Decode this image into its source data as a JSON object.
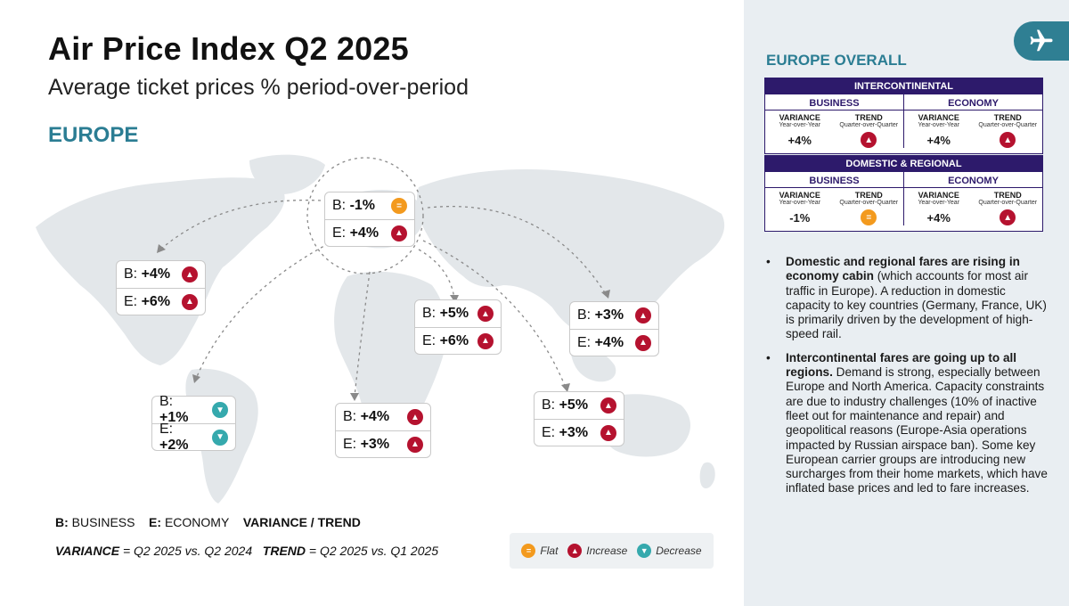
{
  "header": {
    "title": "Air Price Index Q2 2025",
    "subtitle": "Average ticket prices % period-over-period",
    "region": "EUROPE"
  },
  "map_cards": {
    "europe": {
      "b_prefix": "B:",
      "b_value": "-1%",
      "b_trend": "flat",
      "e_prefix": "E:",
      "e_value": "+4%",
      "e_trend": "increase"
    },
    "north_america": {
      "b_prefix": "B:",
      "b_value": "+4%",
      "b_trend": "increase",
      "e_prefix": "E:",
      "e_value": "+6%",
      "e_trend": "increase"
    },
    "south_america": {
      "b_prefix": "B:",
      "b_value": "+1%",
      "b_trend": "decrease",
      "e_prefix": "E:",
      "e_value": "+2%",
      "e_trend": "decrease"
    },
    "africa": {
      "b_prefix": "B:",
      "b_value": "+4%",
      "b_trend": "increase",
      "e_prefix": "E:",
      "e_value": "+3%",
      "e_trend": "increase"
    },
    "middle_east": {
      "b_prefix": "B:",
      "b_value": "+5%",
      "b_trend": "increase",
      "e_prefix": "E:",
      "e_value": "+6%",
      "e_trend": "increase"
    },
    "asia": {
      "b_prefix": "B:",
      "b_value": "+3%",
      "b_trend": "increase",
      "e_prefix": "E:",
      "e_value": "+4%",
      "e_trend": "increase"
    },
    "oceania": {
      "b_prefix": "B:",
      "b_value": "+5%",
      "b_trend": "increase",
      "e_prefix": "E:",
      "e_value": "+3%",
      "e_trend": "increase"
    }
  },
  "legend": {
    "b_key": "B:",
    "b_text": "BUSINESS",
    "e_key": "E:",
    "e_text": "ECONOMY",
    "vt": "VARIANCE / TREND",
    "variance_key": "VARIANCE",
    "variance_def": "= Q2 2025 vs. Q2 2024",
    "trend_key": "TREND",
    "trend_def": "= Q2 2025 vs. Q1 2025",
    "flat": "Flat",
    "increase": "Increase",
    "decrease": "Decrease"
  },
  "colors": {
    "increase": "#b5122f",
    "flat": "#f39a1e",
    "decrease": "#35a9ad",
    "accent": "#2b7d93",
    "table": "#2d1a6b"
  },
  "europe_overall": {
    "title": "EUROPE OVERALL",
    "intercontinental": {
      "header": "INTERCONTINENTAL",
      "business": {
        "label": "BUSINESS",
        "variance_label": "VARIANCE",
        "variance_sub": "Year-over-Year",
        "trend_label": "TREND",
        "trend_sub": "Quarter-over-Quarter",
        "variance": "+4%",
        "trend": "increase"
      },
      "economy": {
        "label": "ECONOMY",
        "variance_label": "VARIANCE",
        "variance_sub": "Year-over-Year",
        "trend_label": "TREND",
        "trend_sub": "Quarter-over-Quarter",
        "variance": "+4%",
        "trend": "increase"
      }
    },
    "domestic": {
      "header": "DOMESTIC & REGIONAL",
      "business": {
        "label": "BUSINESS",
        "variance_label": "VARIANCE",
        "variance_sub": "Year-over-Year",
        "trend_label": "TREND",
        "trend_sub": "Quarter-over-Quarter",
        "variance": "-1%",
        "trend": "flat"
      },
      "economy": {
        "label": "ECONOMY",
        "variance_label": "VARIANCE",
        "variance_sub": "Year-over-Year",
        "trend_label": "TREND",
        "trend_sub": "Quarter-over-Quarter",
        "variance": "+4%",
        "trend": "increase"
      }
    }
  },
  "bullets": [
    {
      "bold": "Domestic and regional fares are rising in economy cabin",
      "text": " (which accounts for most air traffic in Europe). A reduction in domestic capacity to key countries (Germany, France, UK) is primarily driven by the development of high-speed rail."
    },
    {
      "bold": "Intercontinental fares are going up to all regions.",
      "text": " Demand is strong, especially between Europe and North America. Capacity constraints are due to industry challenges (10% of inactive fleet out for maintenance and repair) and geopolitical reasons (Europe-Asia operations impacted by Russian airspace ban). Some key European carrier groups are introducing new surcharges from their home markets, which have inflated base prices and led to fare increases."
    }
  ],
  "icons": {
    "plane": "airplane-icon",
    "increase": "arrow-up-icon",
    "flat": "equals-icon",
    "decrease": "arrow-down-icon"
  }
}
